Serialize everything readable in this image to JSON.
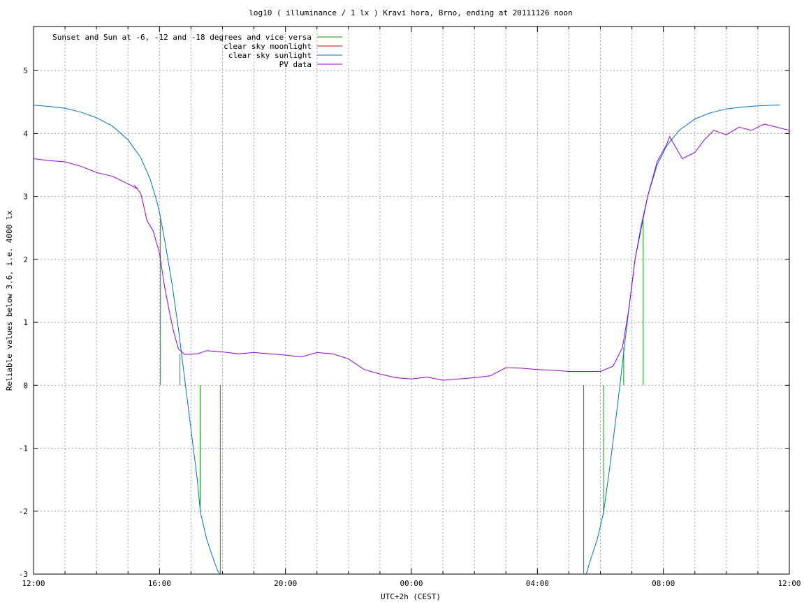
{
  "chart_data": {
    "type": "line",
    "title": "log10 ( illuminance / 1 lx ) Kravi hora, Brno, ending at 20111126 noon",
    "xlabel": "UTC+2h (CEST)",
    "ylabel": "Reliable values below 3.6, i.e. 4000 lx",
    "x_unit": "hours after 12:00",
    "xlim": [
      0,
      24
    ],
    "ylim": [
      -3,
      5.7
    ],
    "grid": true,
    "legend_position": "top-left",
    "x_ticks": [
      {
        "x": 0,
        "label": "12:00"
      },
      {
        "x": 4,
        "label": "16:00"
      },
      {
        "x": 8,
        "label": "20:00"
      },
      {
        "x": 12,
        "label": "00:00"
      },
      {
        "x": 16,
        "label": "04:00"
      },
      {
        "x": 20,
        "label": "08:00"
      },
      {
        "x": 24,
        "label": "12:00"
      }
    ],
    "x_minor_ticks": [
      1,
      2,
      3,
      5,
      6,
      7,
      9,
      10,
      11,
      13,
      14,
      15,
      17,
      18,
      19,
      21,
      22,
      23
    ],
    "y_ticks": [
      {
        "y": -3,
        "label": "-3"
      },
      {
        "y": -2,
        "label": "-2"
      },
      {
        "y": -1,
        "label": "-1"
      },
      {
        "y": 0,
        "label": "0"
      },
      {
        "y": 1,
        "label": "1"
      },
      {
        "y": 2,
        "label": "2"
      },
      {
        "y": 3,
        "label": "3"
      },
      {
        "y": 4,
        "label": "4"
      },
      {
        "y": 5,
        "label": "5"
      }
    ],
    "series": [
      {
        "name": "Sunset and Sun at -6, -12 and -18 degrees and vice versa",
        "color": "#00a000",
        "style": "impulses",
        "segments": [
          {
            "x": 4.03,
            "y0": 0,
            "y1": 2.65
          },
          {
            "x": 4.65,
            "y0": 0,
            "y1": 0.5
          },
          {
            "x": 5.29,
            "y0": 0,
            "y1": -2.02
          },
          {
            "x": 5.93,
            "y0": 0,
            "y1": -3.0
          },
          {
            "x": 17.47,
            "y0": 0,
            "y1": -3.0
          },
          {
            "x": 18.1,
            "y0": 0,
            "y1": -2.05
          },
          {
            "x": 18.74,
            "y0": 0,
            "y1": 0.6
          },
          {
            "x": 19.36,
            "y0": 0,
            "y1": 2.62
          }
        ]
      },
      {
        "name": "clear sky moonlight",
        "color": "#d00000",
        "points": []
      },
      {
        "name": "clear sky sunlight",
        "color": "#0070c0",
        "points": [
          [
            0,
            4.45
          ],
          [
            0.5,
            4.43
          ],
          [
            1,
            4.4
          ],
          [
            1.5,
            4.34
          ],
          [
            2,
            4.25
          ],
          [
            2.5,
            4.12
          ],
          [
            3,
            3.9
          ],
          [
            3.4,
            3.62
          ],
          [
            3.7,
            3.28
          ],
          [
            3.9,
            2.95
          ],
          [
            4.0,
            2.75
          ],
          [
            4.2,
            2.2
          ],
          [
            4.4,
            1.6
          ],
          [
            4.6,
            0.9
          ],
          [
            4.8,
            0.1
          ],
          [
            5.0,
            -0.7
          ],
          [
            5.2,
            -1.5
          ],
          [
            5.3,
            -2.02
          ],
          [
            5.5,
            -2.45
          ],
          [
            5.7,
            -2.75
          ],
          [
            5.85,
            -2.95
          ],
          [
            5.93,
            -3.0
          ]
        ],
        "points_morning": [
          [
            17.55,
            -3.0
          ],
          [
            17.7,
            -2.75
          ],
          [
            17.9,
            -2.45
          ],
          [
            18.1,
            -2.02
          ],
          [
            18.3,
            -1.3
          ],
          [
            18.5,
            -0.5
          ],
          [
            18.7,
            0.35
          ],
          [
            18.9,
            1.2
          ],
          [
            19.1,
            2.0
          ],
          [
            19.3,
            2.55
          ],
          [
            19.5,
            3.0
          ],
          [
            19.8,
            3.5
          ],
          [
            20.1,
            3.8
          ],
          [
            20.5,
            4.05
          ],
          [
            21,
            4.23
          ],
          [
            21.5,
            4.33
          ],
          [
            22,
            4.39
          ],
          [
            22.5,
            4.42
          ],
          [
            23,
            4.44
          ],
          [
            23.5,
            4.45
          ],
          [
            23.7,
            4.45
          ]
        ]
      },
      {
        "name": "PV data",
        "color": "#9400d3",
        "points": [
          [
            0,
            3.6
          ],
          [
            0.5,
            3.57
          ],
          [
            1,
            3.55
          ],
          [
            1.5,
            3.48
          ],
          [
            2,
            3.38
          ],
          [
            2.5,
            3.32
          ],
          [
            3,
            3.2
          ],
          [
            3.3,
            3.12
          ],
          [
            3.2,
            3.18
          ],
          [
            3.4,
            3.05
          ],
          [
            3.5,
            2.85
          ],
          [
            3.6,
            2.62
          ],
          [
            3.8,
            2.45
          ],
          [
            4.0,
            2.1
          ],
          [
            4.15,
            1.6
          ],
          [
            4.3,
            1.2
          ],
          [
            4.45,
            0.85
          ],
          [
            4.6,
            0.58
          ],
          [
            4.8,
            0.49
          ],
          [
            5.2,
            0.5
          ],
          [
            5.5,
            0.55
          ],
          [
            6,
            0.53
          ],
          [
            6.5,
            0.5
          ],
          [
            7,
            0.52
          ],
          [
            7.5,
            0.5
          ],
          [
            8,
            0.48
          ],
          [
            8.5,
            0.45
          ],
          [
            9,
            0.52
          ],
          [
            9.5,
            0.5
          ],
          [
            10,
            0.42
          ],
          [
            10.5,
            0.25
          ],
          [
            11,
            0.18
          ],
          [
            11.5,
            0.12
          ],
          [
            12,
            0.1
          ],
          [
            12.5,
            0.13
          ],
          [
            13,
            0.08
          ],
          [
            13.5,
            0.1
          ],
          [
            14,
            0.12
          ],
          [
            14.5,
            0.15
          ],
          [
            15.0,
            0.28
          ],
          [
            15.5,
            0.27
          ],
          [
            16,
            0.25
          ],
          [
            16.5,
            0.24
          ],
          [
            17,
            0.22
          ],
          [
            17.5,
            0.22
          ],
          [
            18,
            0.22
          ],
          [
            18.4,
            0.3
          ],
          [
            18.7,
            0.6
          ],
          [
            18.9,
            1.2
          ],
          [
            19.1,
            2.0
          ],
          [
            19.3,
            2.5
          ],
          [
            19.5,
            3.0
          ],
          [
            19.8,
            3.55
          ],
          [
            20.1,
            3.82
          ],
          [
            20.2,
            3.95
          ],
          [
            20.6,
            3.6
          ],
          [
            21.0,
            3.7
          ],
          [
            21.3,
            3.9
          ],
          [
            21.6,
            4.05
          ],
          [
            22.0,
            3.98
          ],
          [
            22.4,
            4.1
          ],
          [
            22.8,
            4.05
          ],
          [
            23.2,
            4.15
          ],
          [
            23.6,
            4.1
          ],
          [
            24,
            4.05
          ]
        ]
      }
    ]
  }
}
